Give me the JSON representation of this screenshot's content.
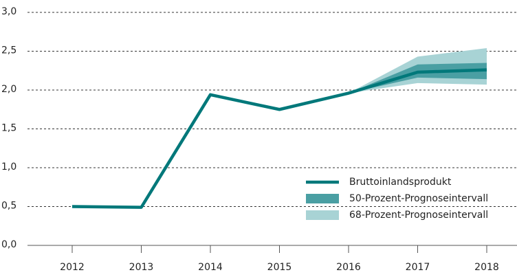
{
  "chart_data": {
    "type": "line",
    "categories": [
      "2012",
      "2013",
      "2014",
      "2015",
      "2016",
      "2017",
      "2018"
    ],
    "series": [
      {
        "name": "Bruttoinlandsprodukt",
        "color": "#00787a",
        "values": [
          0.5,
          0.49,
          1.94,
          1.75,
          1.96,
          2.23,
          2.26
        ]
      },
      {
        "name": "50-Prozent-Prognoseintervall",
        "color": "#4a9fa3",
        "lower": [
          null,
          null,
          null,
          null,
          1.96,
          2.16,
          2.14
        ],
        "upper": [
          null,
          null,
          null,
          null,
          1.96,
          2.33,
          2.35
        ]
      },
      {
        "name": "68-Prozent-Prognoseintervall",
        "color": "#a8d3d5",
        "lower": [
          null,
          null,
          null,
          null,
          1.96,
          2.09,
          2.07
        ],
        "upper": [
          null,
          null,
          null,
          null,
          1.96,
          2.43,
          2.54
        ]
      }
    ],
    "ylim": [
      0,
      3
    ],
    "yticks": [
      {
        "value": 0,
        "label": "0,0"
      },
      {
        "value": 0.5,
        "label": "0,5"
      },
      {
        "value": 1,
        "label": "1,0"
      },
      {
        "value": 1.5,
        "label": "1,5"
      },
      {
        "value": 2,
        "label": "2,0"
      },
      {
        "value": 2.5,
        "label": "2,5"
      },
      {
        "value": 3,
        "label": "3,0"
      }
    ],
    "grid": true,
    "legend": "lower-right"
  }
}
